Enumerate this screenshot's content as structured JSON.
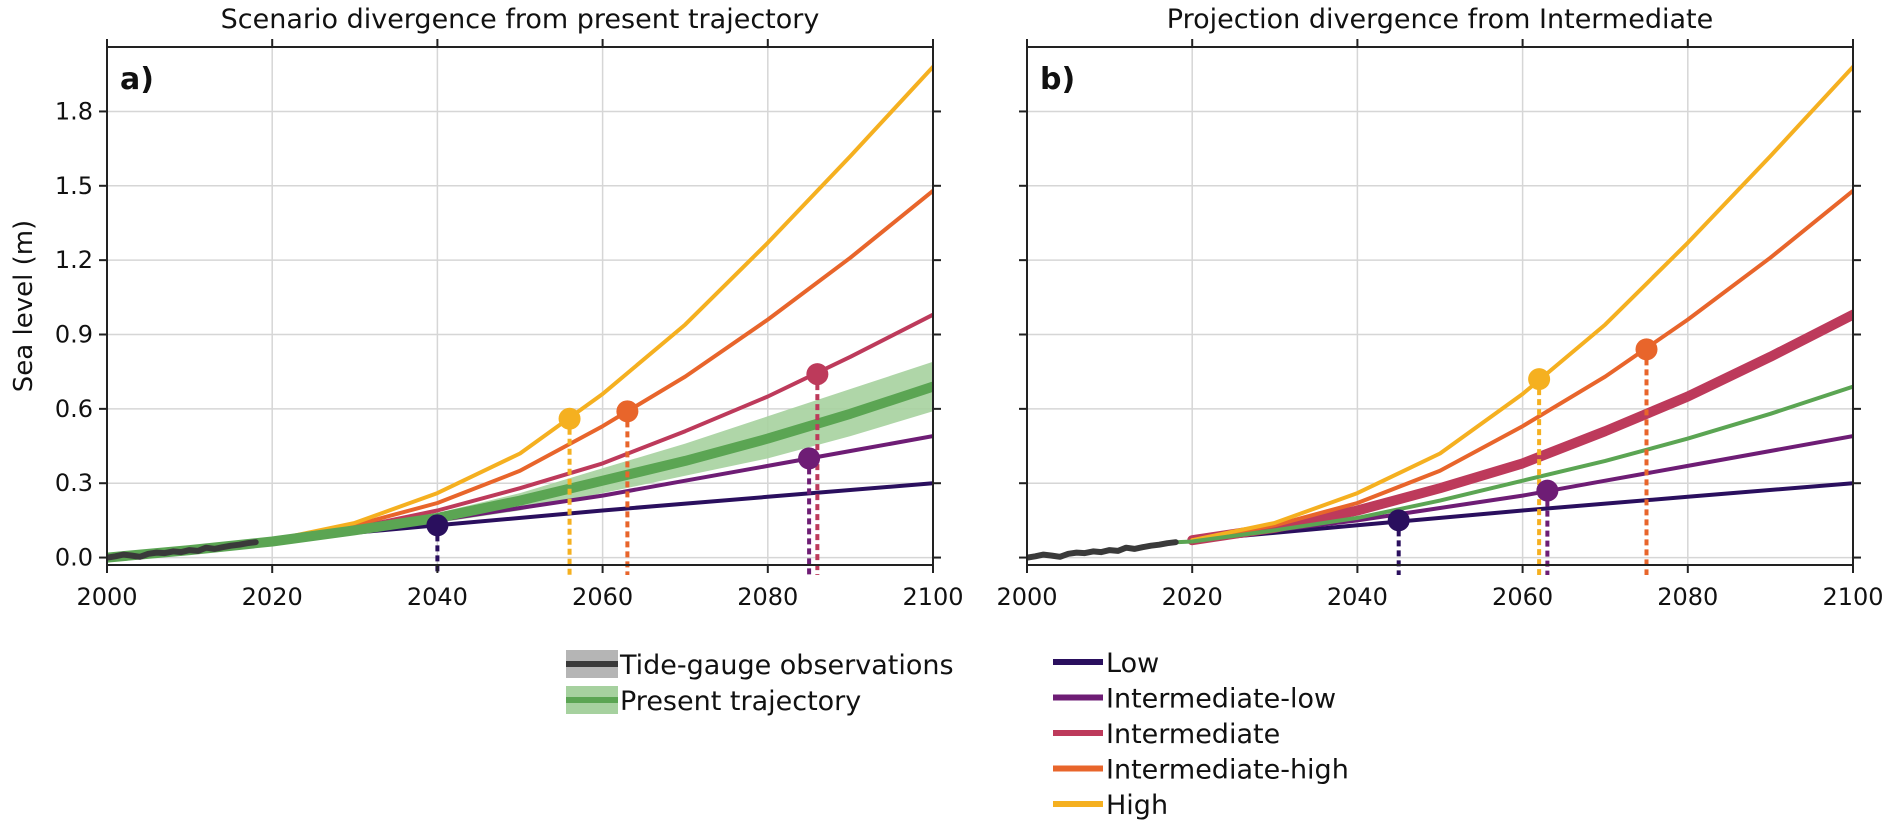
{
  "chart_data": [
    {
      "panel_label": "a)",
      "type": "line",
      "title": "Scenario divergence from present trajectory",
      "xlabel": "",
      "ylabel": "Sea level (m)",
      "xlim": [
        2000,
        2100
      ],
      "ylim": [
        -0.03,
        2.06
      ],
      "xticks": [
        "2000",
        "2020",
        "2040",
        "2060",
        "2080",
        "2100"
      ],
      "yticks": [
        "0.0",
        "0.3",
        "0.6",
        "0.9",
        "1.2",
        "1.5",
        "1.8"
      ],
      "grid": true,
      "observations": {
        "name": "Tide-gauge observations",
        "x": [
          2000,
          2001,
          2002,
          2003,
          2004,
          2005,
          2006,
          2007,
          2008,
          2009,
          2010,
          2011,
          2012,
          2013,
          2014,
          2015,
          2016,
          2017,
          2018
        ],
        "y": [
          0.0,
          0.005,
          0.012,
          0.008,
          0.003,
          0.015,
          0.02,
          0.018,
          0.025,
          0.022,
          0.03,
          0.027,
          0.04,
          0.035,
          0.042,
          0.048,
          0.052,
          0.058,
          0.062
        ]
      },
      "present_trajectory": {
        "name": "Present trajectory",
        "x": [
          2000,
          2010,
          2020,
          2030,
          2040,
          2050,
          2060,
          2070,
          2080,
          2090,
          2100
        ],
        "y": [
          0.0,
          0.03,
          0.065,
          0.11,
          0.16,
          0.23,
          0.31,
          0.39,
          0.48,
          0.58,
          0.69
        ],
        "lower": [
          0.0,
          0.03,
          0.062,
          0.1,
          0.14,
          0.19,
          0.26,
          0.33,
          0.4,
          0.49,
          0.59
        ],
        "upper": [
          0.0,
          0.03,
          0.068,
          0.12,
          0.18,
          0.26,
          0.36,
          0.46,
          0.57,
          0.68,
          0.79
        ]
      },
      "series": [
        {
          "name": "Low",
          "x": [
            2020,
            2040,
            2060,
            2080,
            2100
          ],
          "y": [
            0.07,
            0.13,
            0.19,
            0.245,
            0.3
          ]
        },
        {
          "name": "Intermediate-low",
          "x": [
            2020,
            2030,
            2040,
            2050,
            2060,
            2070,
            2080,
            2090,
            2100
          ],
          "y": [
            0.07,
            0.11,
            0.15,
            0.2,
            0.25,
            0.31,
            0.37,
            0.43,
            0.49
          ]
        },
        {
          "name": "Intermediate",
          "x": [
            2020,
            2030,
            2040,
            2050,
            2060,
            2070,
            2080,
            2090,
            2100
          ],
          "y": [
            0.07,
            0.12,
            0.19,
            0.28,
            0.38,
            0.51,
            0.65,
            0.81,
            0.98
          ]
        },
        {
          "name": "Intermediate-high",
          "x": [
            2020,
            2030,
            2040,
            2050,
            2060,
            2070,
            2080,
            2090,
            2100
          ],
          "y": [
            0.07,
            0.13,
            0.22,
            0.35,
            0.53,
            0.73,
            0.96,
            1.21,
            1.48
          ]
        },
        {
          "name": "High",
          "x": [
            2020,
            2030,
            2040,
            2050,
            2060,
            2070,
            2080,
            2090,
            2100
          ],
          "y": [
            0.07,
            0.14,
            0.26,
            0.42,
            0.66,
            0.94,
            1.27,
            1.62,
            1.98
          ]
        }
      ],
      "divergence_points": [
        {
          "series": "Low",
          "x": 2040,
          "y": 0.13
        },
        {
          "series": "High",
          "x": 2056,
          "y": 0.56
        },
        {
          "series": "Intermediate-high",
          "x": 2063,
          "y": 0.59
        },
        {
          "series": "Intermediate-low",
          "x": 2085,
          "y": 0.4
        },
        {
          "series": "Intermediate",
          "x": 2086,
          "y": 0.74
        }
      ]
    },
    {
      "panel_label": "b)",
      "type": "line",
      "title": "Projection divergence from Intermediate",
      "xlabel": "",
      "ylabel": "",
      "xlim": [
        2000,
        2100
      ],
      "ylim": [
        -0.03,
        2.06
      ],
      "xticks": [
        "2000",
        "2020",
        "2040",
        "2060",
        "2080",
        "2100"
      ],
      "grid": true,
      "observations": {
        "x": [
          2000,
          2001,
          2002,
          2003,
          2004,
          2005,
          2006,
          2007,
          2008,
          2009,
          2010,
          2011,
          2012,
          2013,
          2014,
          2015,
          2016,
          2017,
          2018
        ],
        "y": [
          0.0,
          0.005,
          0.012,
          0.008,
          0.003,
          0.015,
          0.02,
          0.018,
          0.025,
          0.022,
          0.03,
          0.027,
          0.04,
          0.035,
          0.042,
          0.048,
          0.052,
          0.058,
          0.062
        ]
      },
      "present_trajectory": {
        "x": [
          2018,
          2020,
          2030,
          2040,
          2050,
          2060,
          2070,
          2080,
          2090,
          2100
        ],
        "y": [
          0.062,
          0.065,
          0.11,
          0.16,
          0.23,
          0.31,
          0.39,
          0.48,
          0.58,
          0.69
        ]
      },
      "series": [
        {
          "name": "Low",
          "x": [
            2020,
            2040,
            2060,
            2080,
            2100
          ],
          "y": [
            0.07,
            0.13,
            0.19,
            0.245,
            0.3
          ]
        },
        {
          "name": "Intermediate-low",
          "x": [
            2020,
            2030,
            2040,
            2050,
            2060,
            2070,
            2080,
            2090,
            2100
          ],
          "y": [
            0.07,
            0.11,
            0.15,
            0.2,
            0.25,
            0.31,
            0.37,
            0.43,
            0.49
          ]
        },
        {
          "name": "Intermediate",
          "x": [
            2020,
            2030,
            2040,
            2050,
            2060,
            2070,
            2080,
            2090,
            2100
          ],
          "y": [
            0.07,
            0.12,
            0.19,
            0.28,
            0.38,
            0.51,
            0.65,
            0.81,
            0.98
          ]
        },
        {
          "name": "Intermediate-high",
          "x": [
            2020,
            2030,
            2040,
            2050,
            2060,
            2070,
            2080,
            2090,
            2100
          ],
          "y": [
            0.07,
            0.13,
            0.22,
            0.35,
            0.53,
            0.73,
            0.96,
            1.21,
            1.48
          ]
        },
        {
          "name": "High",
          "x": [
            2020,
            2030,
            2040,
            2050,
            2060,
            2070,
            2080,
            2090,
            2100
          ],
          "y": [
            0.07,
            0.14,
            0.26,
            0.42,
            0.66,
            0.94,
            1.27,
            1.62,
            1.98
          ]
        }
      ],
      "emphasized_series": "Intermediate",
      "divergence_points": [
        {
          "series": "Low",
          "x": 2045,
          "y": 0.15
        },
        {
          "series": "High",
          "x": 2062,
          "y": 0.72
        },
        {
          "series": "Intermediate-low",
          "x": 2063,
          "y": 0.27
        },
        {
          "series": "Intermediate-high",
          "x": 2075,
          "y": 0.84
        }
      ]
    }
  ],
  "colors": {
    "Low": "#2a0f5e",
    "Intermediate-low": "#6e1d75",
    "Intermediate": "#bd3a5b",
    "Intermediate-high": "#e8652b",
    "High": "#f5b020",
    "Present trajectory": "#5ba553",
    "Present trajectory band": "#a6d19f",
    "Tide-gauge observations": "#3a3a3a",
    "Tide-gauge band": "#b5b5b5",
    "grid": "#d6d6d6"
  },
  "legend": {
    "left": [
      {
        "label": "Tide-gauge observations",
        "key": "Tide-gauge observations",
        "band_key": "Tide-gauge band"
      },
      {
        "label": "Present trajectory",
        "key": "Present trajectory",
        "band_key": "Present trajectory band"
      }
    ],
    "right": [
      {
        "label": "Low",
        "key": "Low"
      },
      {
        "label": "Intermediate-low",
        "key": "Intermediate-low"
      },
      {
        "label": "Intermediate",
        "key": "Intermediate"
      },
      {
        "label": "Intermediate-high",
        "key": "Intermediate-high"
      },
      {
        "label": "High",
        "key": "High"
      }
    ]
  }
}
